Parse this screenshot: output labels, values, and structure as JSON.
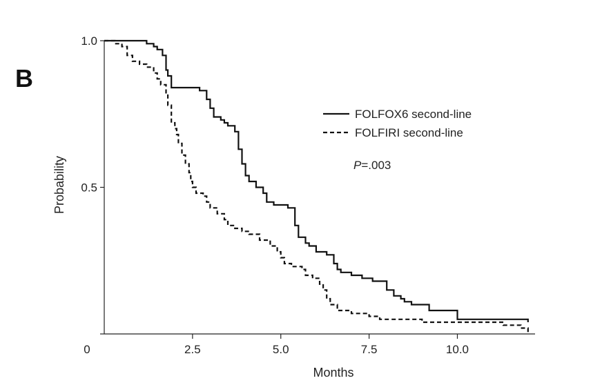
{
  "panel_label": "B",
  "chart_data": {
    "type": "line",
    "xlabel": "Months",
    "ylabel": "Probability",
    "xlim": [
      0,
      12.2
    ],
    "ylim": [
      0,
      1.0
    ],
    "x_ticks": [
      0,
      2.5,
      5.0,
      7.5,
      10.0
    ],
    "x_tick_labels": [
      "0",
      "2.5",
      "5.0",
      "7.5",
      "10.0"
    ],
    "y_ticks": [
      0.5,
      1.0
    ],
    "y_tick_labels": [
      "0.5",
      "1.0"
    ],
    "legend": [
      {
        "name": "FOLFOX6 second-line",
        "style": "solid"
      },
      {
        "name": "FOLFIRI second-line",
        "style": "dashed"
      }
    ],
    "annotation": {
      "italic": "P",
      "rest": "=.003"
    },
    "series": [
      {
        "name": "FOLFOX6 second-line",
        "style": "solid",
        "points": [
          [
            0,
            1.0
          ],
          [
            1.1,
            1.0
          ],
          [
            1.2,
            0.99
          ],
          [
            1.4,
            0.98
          ],
          [
            1.5,
            0.97
          ],
          [
            1.65,
            0.95
          ],
          [
            1.75,
            0.9
          ],
          [
            1.8,
            0.88
          ],
          [
            1.9,
            0.84
          ],
          [
            2.2,
            0.84
          ],
          [
            2.7,
            0.83
          ],
          [
            2.9,
            0.8
          ],
          [
            3.0,
            0.77
          ],
          [
            3.1,
            0.74
          ],
          [
            3.3,
            0.73
          ],
          [
            3.4,
            0.72
          ],
          [
            3.5,
            0.71
          ],
          [
            3.7,
            0.69
          ],
          [
            3.8,
            0.63
          ],
          [
            3.9,
            0.58
          ],
          [
            4.0,
            0.54
          ],
          [
            4.1,
            0.52
          ],
          [
            4.3,
            0.5
          ],
          [
            4.5,
            0.48
          ],
          [
            4.6,
            0.45
          ],
          [
            4.8,
            0.44
          ],
          [
            5.2,
            0.43
          ],
          [
            5.4,
            0.37
          ],
          [
            5.5,
            0.33
          ],
          [
            5.7,
            0.31
          ],
          [
            5.8,
            0.3
          ],
          [
            6.0,
            0.28
          ],
          [
            6.3,
            0.27
          ],
          [
            6.5,
            0.24
          ],
          [
            6.6,
            0.22
          ],
          [
            6.7,
            0.21
          ],
          [
            7.0,
            0.2
          ],
          [
            7.3,
            0.19
          ],
          [
            7.6,
            0.18
          ],
          [
            7.8,
            0.18
          ],
          [
            8.0,
            0.15
          ],
          [
            8.2,
            0.13
          ],
          [
            8.4,
            0.12
          ],
          [
            8.5,
            0.11
          ],
          [
            8.7,
            0.1
          ],
          [
            9.1,
            0.1
          ],
          [
            9.2,
            0.08
          ],
          [
            9.9,
            0.08
          ],
          [
            10.0,
            0.05
          ],
          [
            12.0,
            0.04
          ]
        ]
      },
      {
        "name": "FOLFIRI second-line",
        "style": "dashed",
        "points": [
          [
            0,
            1.0
          ],
          [
            0.3,
            0.99
          ],
          [
            0.5,
            0.98
          ],
          [
            0.65,
            0.95
          ],
          [
            0.8,
            0.93
          ],
          [
            1.0,
            0.92
          ],
          [
            1.2,
            0.91
          ],
          [
            1.4,
            0.89
          ],
          [
            1.5,
            0.87
          ],
          [
            1.6,
            0.85
          ],
          [
            1.75,
            0.82
          ],
          [
            1.8,
            0.78
          ],
          [
            1.9,
            0.72
          ],
          [
            2.0,
            0.7
          ],
          [
            2.05,
            0.68
          ],
          [
            2.1,
            0.65
          ],
          [
            2.2,
            0.61
          ],
          [
            2.3,
            0.58
          ],
          [
            2.4,
            0.55
          ],
          [
            2.45,
            0.52
          ],
          [
            2.5,
            0.5
          ],
          [
            2.6,
            0.48
          ],
          [
            2.8,
            0.47
          ],
          [
            2.9,
            0.45
          ],
          [
            3.0,
            0.43
          ],
          [
            3.2,
            0.41
          ],
          [
            3.4,
            0.39
          ],
          [
            3.5,
            0.37
          ],
          [
            3.7,
            0.36
          ],
          [
            3.9,
            0.35
          ],
          [
            4.1,
            0.34
          ],
          [
            4.4,
            0.32
          ],
          [
            4.7,
            0.3
          ],
          [
            4.9,
            0.28
          ],
          [
            5.0,
            0.26
          ],
          [
            5.1,
            0.24
          ],
          [
            5.3,
            0.23
          ],
          [
            5.6,
            0.22
          ],
          [
            5.7,
            0.2
          ],
          [
            5.9,
            0.19
          ],
          [
            6.1,
            0.17
          ],
          [
            6.2,
            0.15
          ],
          [
            6.3,
            0.12
          ],
          [
            6.4,
            0.1
          ],
          [
            6.6,
            0.08
          ],
          [
            7.0,
            0.07
          ],
          [
            7.5,
            0.06
          ],
          [
            7.8,
            0.05
          ],
          [
            9.0,
            0.04
          ],
          [
            11.2,
            0.04
          ],
          [
            11.3,
            0.03
          ],
          [
            11.8,
            0.02
          ],
          [
            12.0,
            0.0
          ]
        ]
      }
    ]
  }
}
